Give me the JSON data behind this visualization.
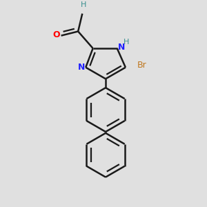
{
  "bg_color": "#e0e0e0",
  "bond_color": "#1a1a1a",
  "N_color": "#2020ff",
  "O_color": "#ff0000",
  "Br_color": "#c07820",
  "H_color": "#3a9090",
  "lw": 1.8,
  "figsize": [
    3.0,
    3.0
  ],
  "dpi": 100,
  "xlim": [
    -1.6,
    1.6
  ],
  "ylim": [
    -2.8,
    1.8
  ]
}
